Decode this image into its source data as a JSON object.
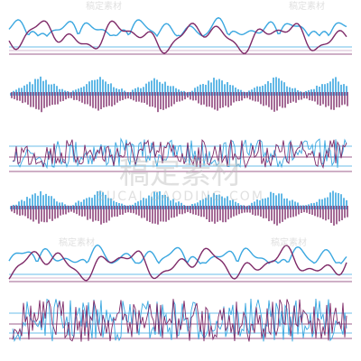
{
  "watermark": {
    "text": "稿定素材",
    "url": "SUCAI.GAODING.COM"
  }
}
